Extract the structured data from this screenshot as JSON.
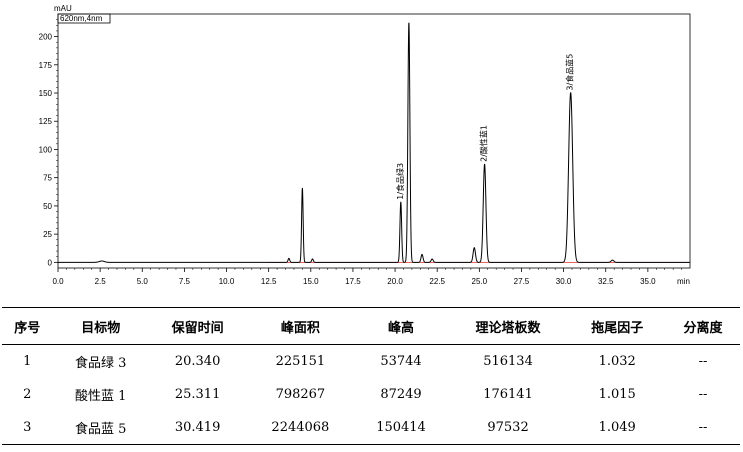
{
  "chart_data": {
    "type": "line",
    "y_unit_label": "mAU",
    "legend_box": "620nm,4nm",
    "x_unit_label": "min",
    "xlim": [
      0,
      37.5
    ],
    "ylim": [
      -5,
      220
    ],
    "x_ticks": [
      "0.0",
      "2.5",
      "5.0",
      "7.5",
      "10.0",
      "12.5",
      "15.0",
      "17.5",
      "20.0",
      "22.5",
      "25.0",
      "27.5",
      "30.0",
      "32.5",
      "35.0"
    ],
    "x_tick_values": [
      0,
      2.5,
      5,
      7.5,
      10,
      12.5,
      15,
      17.5,
      20,
      22.5,
      25,
      27.5,
      30,
      32.5,
      35
    ],
    "y_ticks": [
      "0",
      "25",
      "50",
      "75",
      "100",
      "125",
      "150",
      "175",
      "200"
    ],
    "y_tick_values": [
      0,
      25,
      50,
      75,
      100,
      125,
      150,
      175,
      200
    ],
    "peaks": [
      {
        "rt": 2.6,
        "height": 1.2,
        "width": 0.15
      },
      {
        "rt": 13.7,
        "height": 3.5,
        "width": 0.05
      },
      {
        "rt": 14.5,
        "height": 66,
        "width": 0.045
      },
      {
        "rt": 15.1,
        "height": 3,
        "width": 0.05
      },
      {
        "rt": 20.34,
        "height": 53.7,
        "width": 0.05
      },
      {
        "rt": 20.82,
        "height": 213,
        "width": 0.06
      },
      {
        "rt": 21.6,
        "height": 7,
        "width": 0.06
      },
      {
        "rt": 22.2,
        "height": 3,
        "width": 0.06
      },
      {
        "rt": 24.7,
        "height": 13,
        "width": 0.07
      },
      {
        "rt": 25.311,
        "height": 87.2,
        "width": 0.08
      },
      {
        "rt": 30.419,
        "height": 150.4,
        "width": 0.12
      },
      {
        "rt": 32.9,
        "height": 2,
        "width": 0.08
      }
    ],
    "peak_labels": [
      {
        "text": "1/食品绿3",
        "rt": 20.34,
        "height": 53.7
      },
      {
        "text": "2/酸性蓝1",
        "rt": 25.311,
        "height": 87.2
      },
      {
        "text": "3/食品蓝5",
        "rt": 30.419,
        "height": 150.4
      }
    ],
    "line_color": "#000000",
    "baseline_color": "#e0302a"
  },
  "table": {
    "headers": [
      "序号",
      "目标物",
      "保留时间",
      "峰面积",
      "峰高",
      "理论塔板数",
      "拖尾因子",
      "分离度"
    ],
    "rows": [
      [
        "1",
        "食品绿 3",
        "20.340",
        "225151",
        "53744",
        "516134",
        "1.032",
        "--"
      ],
      [
        "2",
        "酸性蓝 1",
        "25.311",
        "798267",
        "87249",
        "176141",
        "1.015",
        "--"
      ],
      [
        "3",
        "食品蓝 5",
        "30.419",
        "2244068",
        "150414",
        "97532",
        "1.049",
        "--"
      ]
    ]
  }
}
